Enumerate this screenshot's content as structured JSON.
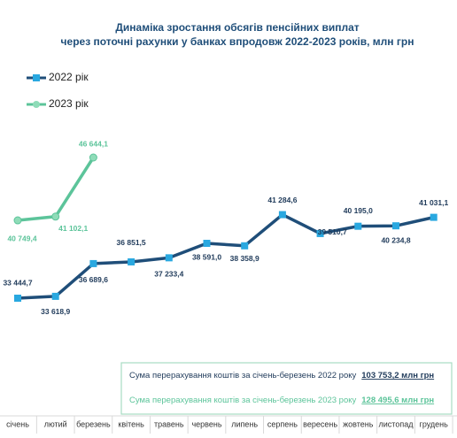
{
  "chart_data": {
    "type": "line",
    "title": [
      "Динаміка зростання обсягів пенсійних виплат",
      "через поточні рахунки у банках впродовж 2022-2023 років, млн грн"
    ],
    "categories": [
      "січень",
      "лютий",
      "березень",
      "квітень",
      "травень",
      "червень",
      "липень",
      "серпень",
      "вересень",
      "жовтень",
      "листопад",
      "грудень"
    ],
    "series": [
      {
        "name": "2022 рік",
        "color": "#1f4e79",
        "marker_color": "#29a8e0",
        "values": [
          33444.7,
          33618.9,
          36689.6,
          36851.5,
          37233.4,
          38591.0,
          38358.9,
          41284.6,
          39510.7,
          40195.0,
          40234.8,
          41031.1
        ],
        "value_labels": [
          "33 444,7",
          "33 618,9",
          "36 689,6",
          "36 851,5",
          "37 233,4",
          "38 591,0",
          "38 358,9",
          "41 284,6",
          "39 510,7",
          "40 195,0",
          "40 234,8",
          "41 031,1"
        ]
      },
      {
        "name": "2023 рік",
        "color": "#5cc49a",
        "marker_color": "#8fdcb8",
        "values": [
          40749.4,
          41102.1,
          46644.1,
          null,
          null,
          null,
          null,
          null,
          null,
          null,
          null,
          null
        ],
        "value_labels": [
          "40 749,4",
          "41 102,1",
          "46 644,1",
          null,
          null,
          null,
          null,
          null,
          null,
          null,
          null,
          null
        ]
      }
    ],
    "annotations": [
      {
        "text": "Сума перерахування коштів  за січень-березень 2022 року",
        "value": "103 753,2 млн грн"
      },
      {
        "text": "Сума перерахування коштів  за січень-березень 2023 року",
        "value": "128 495,6 млн грн"
      }
    ]
  }
}
